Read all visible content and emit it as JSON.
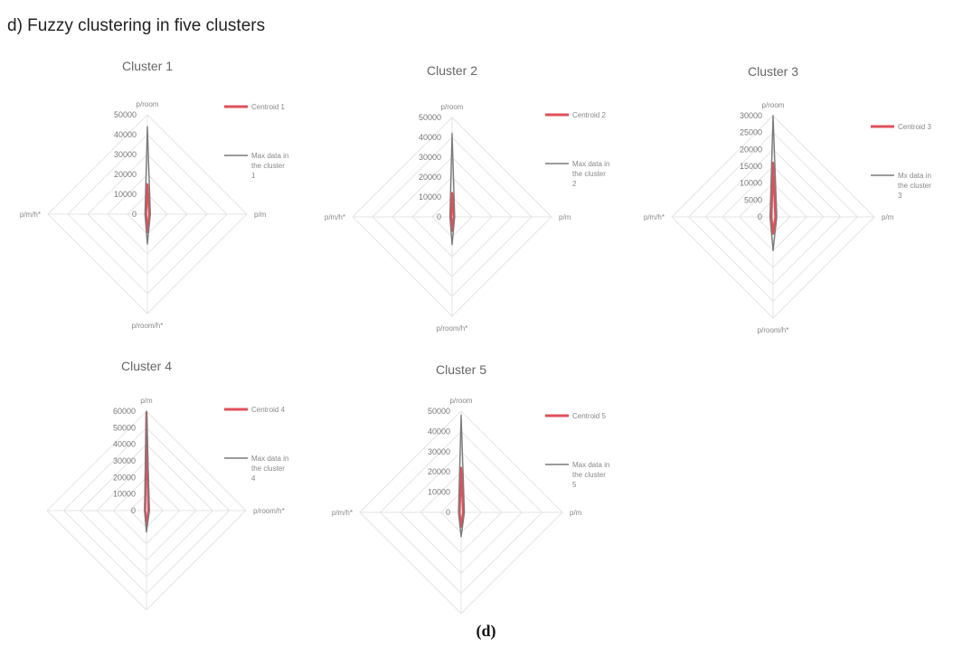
{
  "figure_title": "d) Fuzzy clustering in five clusters",
  "caption": "(d)",
  "colors": {
    "centroid": "#e0505a",
    "max_data": "#7a7a7a",
    "grid": "#e4e4e4"
  },
  "chart_data": [
    {
      "type": "radar",
      "title": "Cluster 1",
      "axes": [
        "p/room",
        "p/m",
        "p/room/h*",
        "p/m/h*"
      ],
      "rmax": 50000,
      "ticks": [
        0,
        10000,
        20000,
        30000,
        40000,
        50000
      ],
      "tick_labels": [
        "0",
        "10000",
        "20000",
        "30000",
        "40000",
        "50000"
      ],
      "series": [
        {
          "name": "Centroid 1",
          "values": [
            15000,
            1000,
            9000,
            700
          ]
        },
        {
          "name": "Max data in the cluster 1",
          "values": [
            44000,
            1500,
            15000,
            1200
          ]
        }
      ]
    },
    {
      "type": "radar",
      "title": "Cluster 2",
      "axes": [
        "p/room",
        "p/m",
        "p/room/h*",
        "p/m/h*"
      ],
      "rmax": 50000,
      "ticks": [
        0,
        10000,
        20000,
        30000,
        40000,
        50000
      ],
      "tick_labels": [
        "0",
        "10000",
        "20000",
        "30000",
        "40000",
        "50000"
      ],
      "series": [
        {
          "name": "Centroid 2",
          "values": [
            12000,
            800,
            7000,
            600
          ]
        },
        {
          "name": "Max data in the cluster 2",
          "values": [
            42000,
            1300,
            14000,
            1100
          ]
        }
      ]
    },
    {
      "type": "radar",
      "title": "Cluster 3",
      "axes": [
        "p/room",
        "p/m",
        "p/room/h*",
        "p/m/h*"
      ],
      "rmax": 30000,
      "ticks": [
        0,
        5000,
        10000,
        15000,
        20000,
        25000,
        30000
      ],
      "tick_labels": [
        "0",
        "5000",
        "10000",
        "15000",
        "20000",
        "25000",
        "30000"
      ],
      "series": [
        {
          "name": "Centroid 3",
          "values": [
            16000,
            700,
            5000,
            500
          ]
        },
        {
          "name": "Mx data in the cluster 3",
          "values": [
            30000,
            1100,
            10000,
            900
          ]
        }
      ]
    },
    {
      "type": "radar",
      "title": "Cluster 4",
      "axes": [
        "p/m",
        "p/room/h*",
        "p/m/h*",
        ""
      ],
      "rmax": 60000,
      "ticks": [
        0,
        10000,
        20000,
        30000,
        40000,
        50000,
        60000
      ],
      "tick_labels": [
        "0",
        "10000",
        "20000",
        "30000",
        "40000",
        "50000",
        "60000"
      ],
      "series": [
        {
          "name": "Centroid 4",
          "values": [
            59000,
            1200,
            9000,
            800
          ]
        },
        {
          "name": "Max data in the cluster 4",
          "values": [
            60000,
            1800,
            13000,
            1200
          ]
        }
      ]
    },
    {
      "type": "radar",
      "title": "Cluster 5",
      "axes": [
        "p/room",
        "p/m",
        "p/room/h*",
        "p/m/h*"
      ],
      "rmax": 50000,
      "ticks": [
        0,
        10000,
        20000,
        30000,
        40000,
        50000
      ],
      "tick_labels": [
        "0",
        "10000",
        "20000",
        "30000",
        "40000",
        "50000"
      ],
      "series": [
        {
          "name": "Centroid 5",
          "values": [
            22000,
            1000,
            7000,
            800
          ]
        },
        {
          "name": "Max data in the cluster 5",
          "values": [
            48000,
            1600,
            12000,
            1300
          ]
        }
      ]
    }
  ]
}
